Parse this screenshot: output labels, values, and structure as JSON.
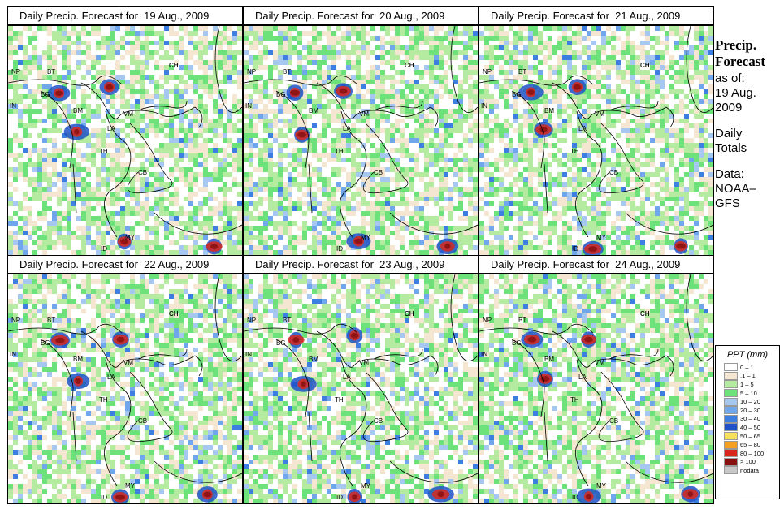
{
  "panels": [
    {
      "title": "Daily Precip. Forecast for  19 Aug., 2009"
    },
    {
      "title": "Daily Precip. Forecast for  20 Aug., 2009"
    },
    {
      "title": "Daily Precip. Forecast for  21 Aug., 2009"
    },
    {
      "title": "Daily Precip. Forecast for  22 Aug., 2009"
    },
    {
      "title": "Daily Precip. Forecast for  23 Aug., 2009"
    },
    {
      "title": "Daily Precip. Forecast for  24 Aug., 2009"
    }
  ],
  "country_labels": [
    "NP",
    "BT",
    "IN",
    "BG",
    "BM",
    "CH",
    "VM",
    "LA",
    "TH",
    "CB",
    "MY",
    "ID",
    "CH"
  ],
  "sidebar": {
    "title_line1": "Precip.",
    "title_line2": "Forecast",
    "asof_1": "as of:",
    "asof_2": "19 Aug.",
    "asof_3": "2009",
    "daily_1": "Daily",
    "daily_2": "Totals",
    "data_1": "Data:",
    "data_2": "NOAA–",
    "data_3": "GFS"
  },
  "legend": {
    "title": "PPT (mm)",
    "items": [
      {
        "label": "0 – 1",
        "color": "#ffffff"
      },
      {
        "label": ".1 – 1",
        "color": "#f5e6d2"
      },
      {
        "label": "1 – 5",
        "color": "#b4eba0"
      },
      {
        "label": "5 – 10",
        "color": "#6ee27a"
      },
      {
        "label": "10 – 20",
        "color": "#a6c8f0"
      },
      {
        "label": "20 – 30",
        "color": "#6fa6ec"
      },
      {
        "label": "30 – 40",
        "color": "#3d7fe0"
      },
      {
        "label": "40 – 50",
        "color": "#1f52c8"
      },
      {
        "label": "50 – 65",
        "color": "#f7e05a"
      },
      {
        "label": "65 – 80",
        "color": "#f5a020"
      },
      {
        "label": "80 – 100",
        "color": "#d8281c"
      },
      {
        "label": "> 100",
        "color": "#8a1010"
      },
      {
        "label": "nodata",
        "color": "#c8c8c8"
      }
    ]
  }
}
